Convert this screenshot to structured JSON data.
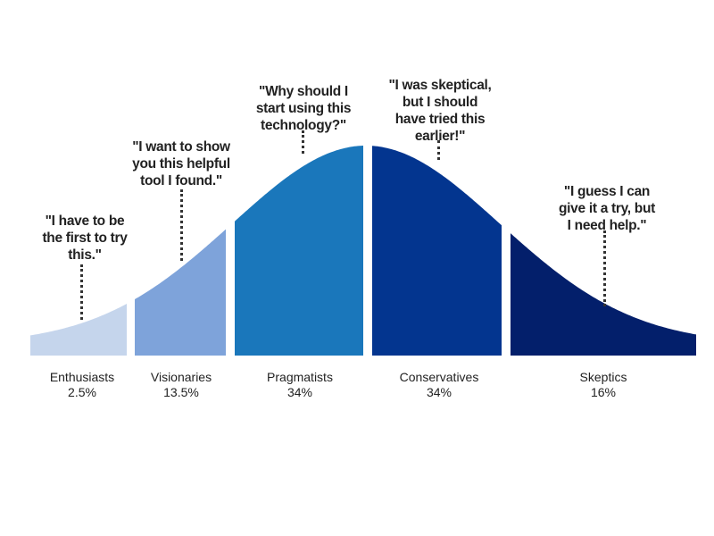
{
  "chart_data": {
    "type": "area",
    "title": "",
    "description": "Technology adoption bell curve divided into five adopter segments",
    "xlabel": "",
    "ylabel": "",
    "grid": false,
    "legend": "none",
    "categories": [
      "Enthusiasts",
      "Visionaries",
      "Pragmatists",
      "Conservatives",
      "Skeptics"
    ],
    "values": [
      2.5,
      13.5,
      34,
      34,
      16
    ],
    "value_labels": [
      "2.5%",
      "13.5%",
      "34%",
      "34%",
      "16%"
    ],
    "colors": [
      "#c5d5ec",
      "#7ea3da",
      "#1a77bb",
      "#03358f",
      "#031f6b"
    ],
    "quotes": [
      "\"I have to be\nthe first to try\nthis.\"",
      "\"I want to show\nyou this helpful\ntool I found.\"",
      "\"Why should I\nstart using this\ntechnology?\"",
      "\"I was skeptical,\nbut I should\nhave tried this\nearlier!\"",
      "\"I guess I can\ngive it a try, but\nI need help.\""
    ]
  },
  "segments": [
    {
      "name": "Enthusiasts",
      "pct": "2.5%",
      "quote": "\"I have to be\nthe first to try\nthis.\""
    },
    {
      "name": "Visionaries",
      "pct": "13.5%",
      "quote": "\"I want to show\nyou this helpful\ntool I found.\""
    },
    {
      "name": "Pragmatists",
      "pct": "34%",
      "quote": "\"Why should I\nstart using this\ntechnology?\""
    },
    {
      "name": "Conservatives",
      "pct": "34%",
      "quote": "\"I was skeptical,\nbut I should\nhave tried this\nearlier!\""
    },
    {
      "name": "Skeptics",
      "pct": "16%",
      "quote": "\"I guess I can\ngive it a try, but\nI need help.\""
    }
  ]
}
